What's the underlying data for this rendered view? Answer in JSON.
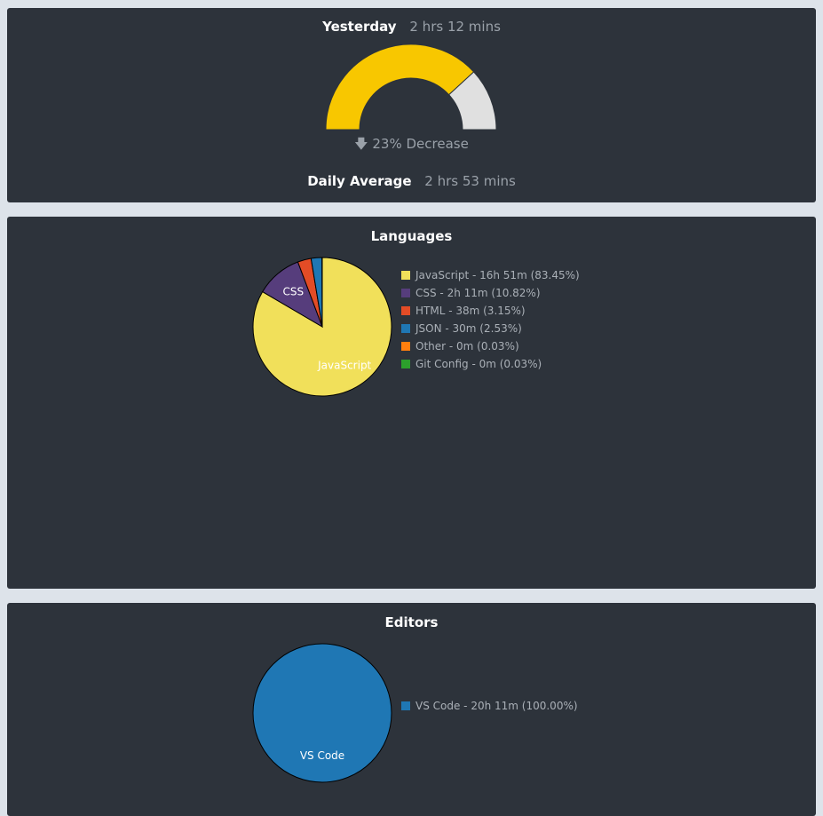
{
  "summary": {
    "yesterday_label": "Yesterday",
    "yesterday_value": "2 hrs 12 mins",
    "change_text": "23% Decrease",
    "daily_average_label": "Daily Average",
    "daily_average_value": "2 hrs 53 mins",
    "gauge": {
      "fraction": 0.763,
      "fill_color": "#f8c700",
      "rest_color": "#e0e0e0"
    }
  },
  "languages": {
    "title": "Languages",
    "legend": [
      {
        "text": "JavaScript - 16h 51m (83.45%)",
        "color": "#f1e05a"
      },
      {
        "text": "CSS - 2h 11m (10.82%)",
        "color": "#563d7c"
      },
      {
        "text": "HTML - 38m (3.15%)",
        "color": "#e34c26"
      },
      {
        "text": "JSON - 30m (2.53%)",
        "color": "#1f77b4"
      },
      {
        "text": "Other - 0m (0.03%)",
        "color": "#ff7f0e"
      },
      {
        "text": "Git Config - 0m (0.03%)",
        "color": "#2ca02c"
      }
    ]
  },
  "editors": {
    "title": "Editors",
    "legend": [
      {
        "text": "VS Code - 20h 11m (100.00%)",
        "color": "#1f77b4"
      }
    ]
  },
  "chart_data": [
    {
      "type": "pie",
      "title": "Languages",
      "categories": [
        "JavaScript",
        "CSS",
        "HTML",
        "JSON",
        "Other",
        "Git Config"
      ],
      "values": [
        83.45,
        10.82,
        3.15,
        2.53,
        0.03,
        0.03
      ],
      "colors": [
        "#f1e05a",
        "#563d7c",
        "#e34c26",
        "#1f77b4",
        "#ff7f0e",
        "#2ca02c"
      ],
      "slice_labels": [
        "JavaScript",
        "CSS",
        "",
        "",
        "",
        ""
      ],
      "legend": "right"
    },
    {
      "type": "pie",
      "title": "Editors",
      "categories": [
        "VS Code"
      ],
      "values": [
        100.0
      ],
      "colors": [
        "#1f77b4"
      ],
      "slice_labels": [
        "VS Code"
      ],
      "legend": "right"
    }
  ]
}
